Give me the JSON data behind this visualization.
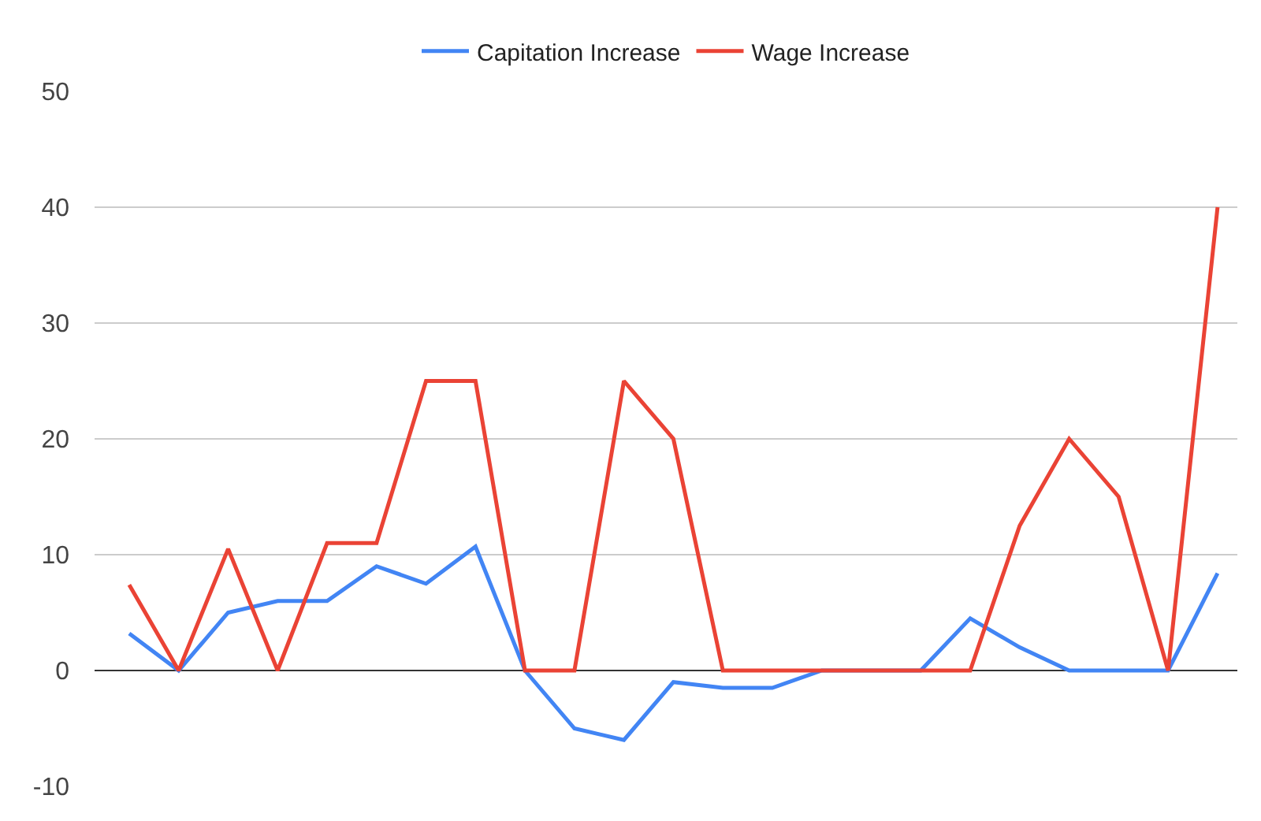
{
  "chart_data": {
    "type": "line",
    "categories": [
      null,
      null,
      null,
      null,
      null,
      null,
      null,
      null,
      null,
      null,
      null,
      null,
      null,
      null,
      null,
      null,
      null,
      null,
      null,
      null,
      null,
      null,
      null
    ],
    "series": [
      {
        "name": "Capitation Increase",
        "color": "#4285f4",
        "values": [
          3.2,
          0,
          5,
          6,
          6,
          9,
          7.5,
          10.7,
          0,
          -5,
          -6,
          -1,
          -1.5,
          -1.5,
          0,
          0,
          0,
          4.5,
          2,
          0,
          0,
          0,
          8.4
        ]
      },
      {
        "name": "Wage Increase",
        "color": "#ea4335",
        "values": [
          7.4,
          0,
          10.5,
          0,
          11,
          11,
          25,
          25,
          0,
          0,
          25,
          20,
          0,
          0,
          0,
          0,
          0,
          0,
          12.5,
          20,
          15,
          0,
          40
        ]
      }
    ],
    "ylim": [
      -10,
      50
    ],
    "yticks": [
      -10,
      0,
      10,
      20,
      30,
      40,
      50
    ],
    "grid": "y",
    "legend": "top",
    "tick_labels": "y",
    "line_style": "solid",
    "marker": "none"
  }
}
